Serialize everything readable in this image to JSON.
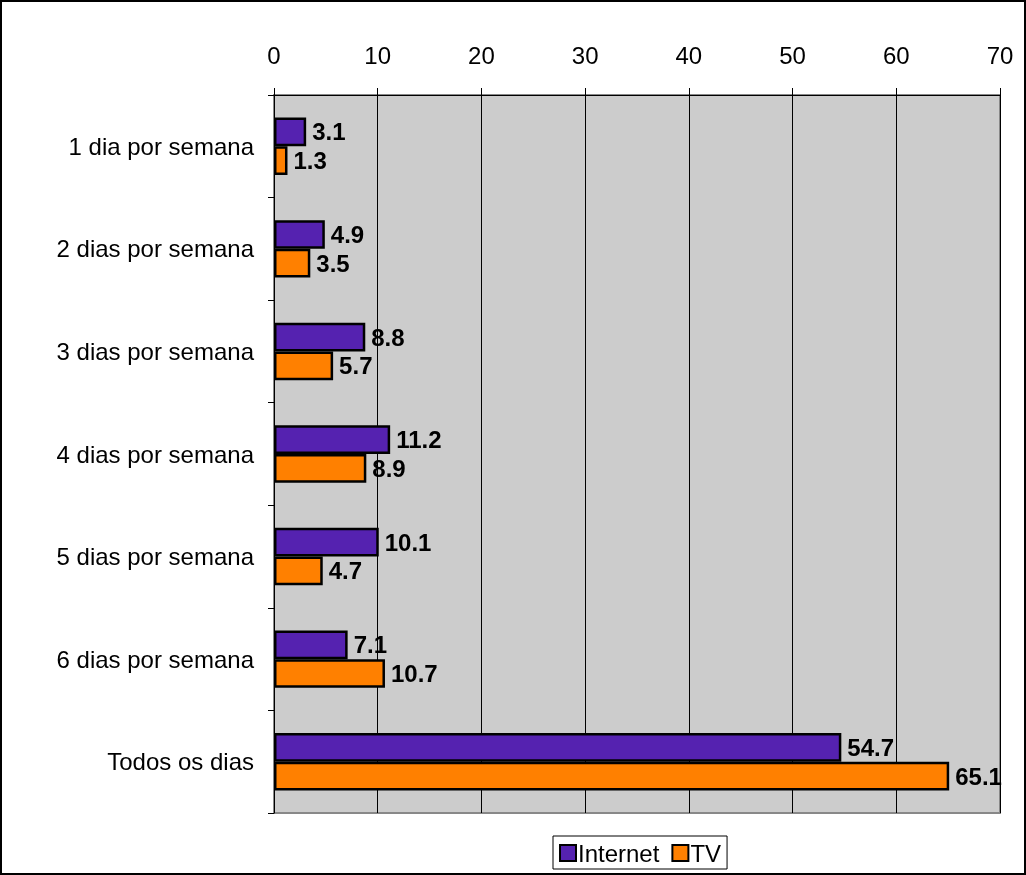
{
  "chart_data": {
    "type": "bar",
    "orientation": "horizontal",
    "categories": [
      "1 dia por semana",
      "2 dias por semana",
      "3 dias por semana",
      "4 dias por semana",
      "5 dias por semana",
      "6 dias por semana",
      "Todos os dias"
    ],
    "series": [
      {
        "name": "Internet",
        "color": "#5522b0",
        "values": [
          3.1,
          4.9,
          8.8,
          11.2,
          10.1,
          7.1,
          54.7
        ]
      },
      {
        "name": "TV",
        "color": "#ff8000",
        "values": [
          1.3,
          3.5,
          5.7,
          8.9,
          4.7,
          10.7,
          65.1
        ]
      }
    ],
    "xlim": [
      0,
      70
    ],
    "xticks": [
      0,
      10,
      20,
      30,
      40,
      50,
      60,
      70
    ],
    "grid": "x",
    "legend": "bottom",
    "data_labels": true
  }
}
